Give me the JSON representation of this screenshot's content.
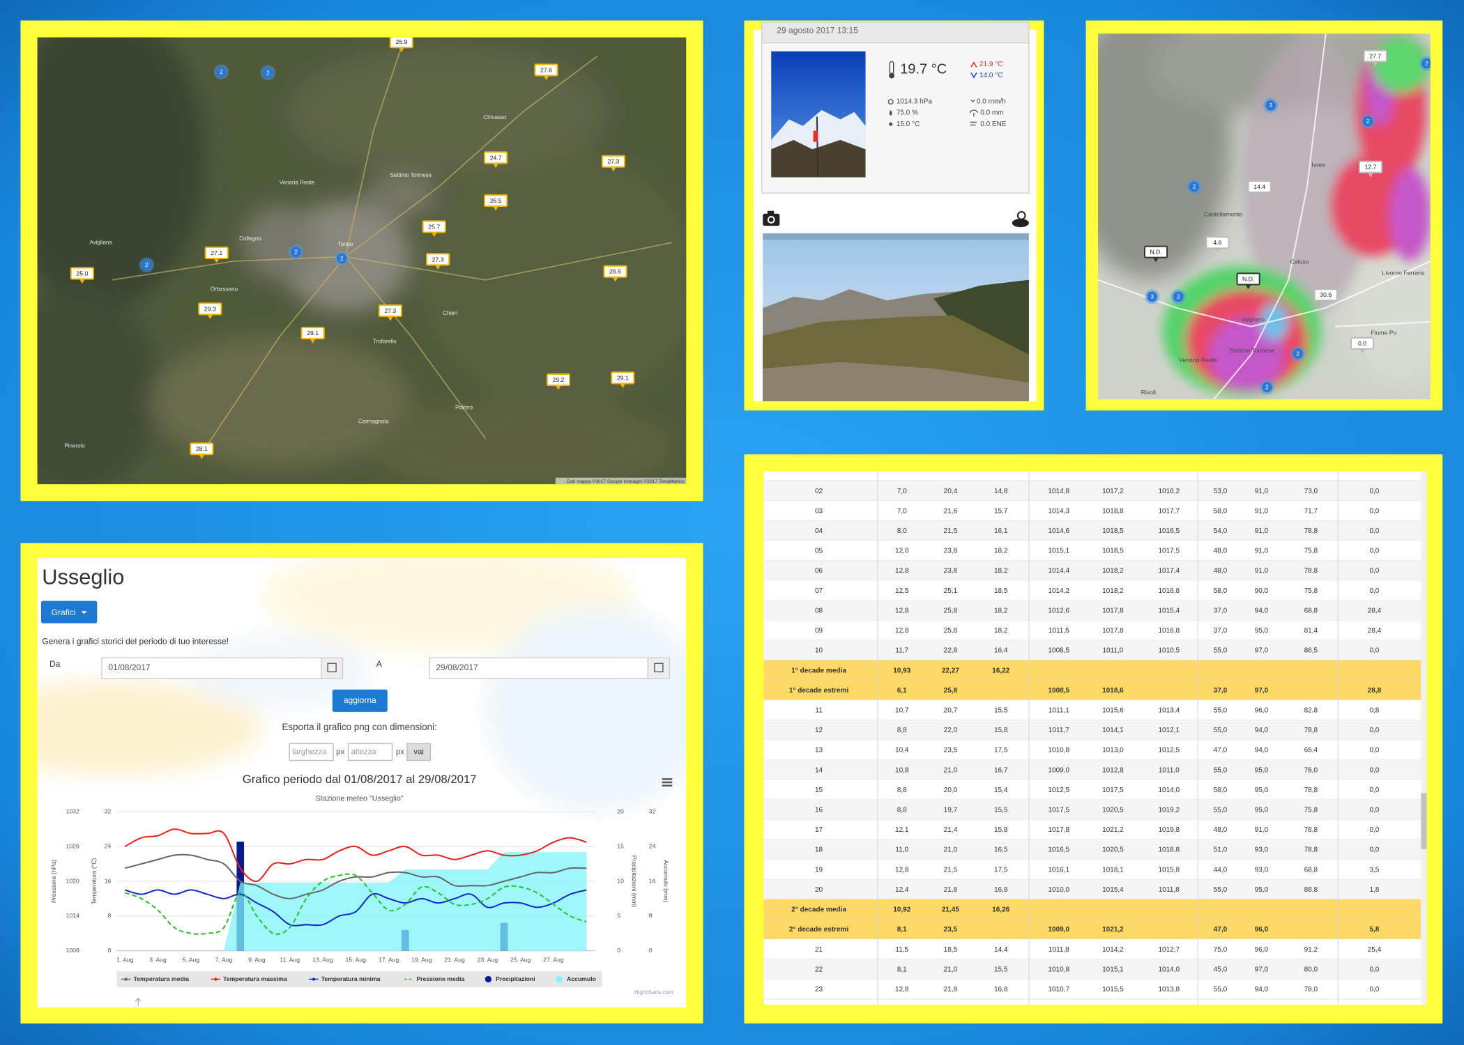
{
  "map": {
    "markers": [
      "26.9",
      "27.6",
      "24.7",
      "27.3",
      "26.5",
      "25.7",
      "27.1",
      "27.3",
      "25.0",
      "26.5",
      "29.3",
      "27.3",
      "29.1",
      "29.2",
      "29.1",
      "28.1"
    ],
    "clusters": [
      "2",
      "2",
      "2",
      "2",
      "2"
    ],
    "places": [
      "Torino",
      "Chivasso",
      "Settimo Torinese",
      "Venaria Reale",
      "Collegno",
      "Orbassano",
      "Carmagnola",
      "Pinerolo",
      "Avigliana",
      "Chieri",
      "Poirino",
      "Trofarello"
    ],
    "attribution": "Dati mappa ©2017 Google Immagini ©2017 TerraMetrics"
  },
  "station": {
    "date": "29 agosto 2017 13:15",
    "temperature": "19.7 °C",
    "max": "21.9 °C",
    "min": "14.0 °C",
    "pressure": "1014.3 hPa",
    "humidity": "75.0 %",
    "dew_point": "15.0 °C",
    "rain_rate": "0.0 mm/h",
    "rain": "0.0 mm",
    "wind": "0.0 ENE"
  },
  "heatmap": {
    "markers": [
      "27.7",
      "12.7",
      "14.4",
      "4.6",
      "N.D.",
      "N.D.",
      "30.6",
      "0.0"
    ],
    "clusters": [
      "3",
      "2",
      "2",
      "3",
      "2",
      "2",
      "2",
      "2"
    ],
    "places": [
      "Ivrea",
      "Castellamonte",
      "Caluso",
      "Volpiano",
      "Settimo Torinese",
      "Venaria Reale",
      "Rivoli",
      "Livorno Ferraris",
      "Fiume Po"
    ]
  },
  "panel": {
    "title": "Usseglio",
    "button": "Grafici",
    "intro": "Genera i grafici storici del periodo di tuo interesse!",
    "from_label": "Da",
    "from": "01/08/2017",
    "to_label": "A",
    "to": "29/08/2017",
    "submit": "aggiorna",
    "export": "Esporta il grafico png con dimensioni:",
    "width_placeholder": "larghezza",
    "height_placeholder": "altezza",
    "unit": "px",
    "go": "vai",
    "credits": "Highcharts.com"
  },
  "chart_data": {
    "type": "line",
    "title": "Grafico periodo dal 01/08/2017 al 29/08/2017",
    "subtitle": "Stazione meteo \"Usseglio\"",
    "categories": [
      "1. Aug",
      null,
      "3. Aug",
      null,
      "5. Aug",
      null,
      "7. Aug",
      null,
      "9. Aug",
      null,
      "11. Aug",
      null,
      "13. Aug",
      null,
      "15. Aug",
      null,
      "17. Aug",
      null,
      "19. Aug",
      null,
      "21. Aug",
      null,
      "23. Aug",
      null,
      "25. Aug",
      null,
      "27. Aug",
      null,
      null
    ],
    "yaxes": [
      {
        "title": "Pressione (hPa)",
        "ylim": [
          1008,
          1032
        ],
        "yticks": [
          1008,
          1014,
          1020,
          1026,
          1032
        ]
      },
      {
        "title": "Temperatura (°C)",
        "ylim": [
          0,
          32
        ],
        "yticks": [
          0,
          8,
          16,
          24,
          32
        ]
      },
      {
        "title": "Precipitazioni (mm)",
        "ylim": [
          0,
          20
        ],
        "yticks": [
          0,
          5,
          10,
          15,
          20
        ]
      },
      {
        "title": "Accumulo (mm)",
        "ylim": [
          0,
          32
        ],
        "yticks": [
          0,
          8,
          16,
          24,
          32
        ]
      }
    ],
    "grid": true,
    "series": [
      {
        "name": "Temperatura media",
        "color": "#666666",
        "axis": 1,
        "values": [
          19,
          20,
          21,
          22,
          22,
          21,
          20,
          16,
          15,
          13,
          12,
          13,
          14,
          16,
          17,
          17,
          18,
          18,
          17,
          17,
          15,
          15,
          15,
          16,
          17,
          18,
          18,
          19,
          19
        ]
      },
      {
        "name": "Temperatura massima",
        "color": "#e8201c",
        "axis": 1,
        "values": [
          24,
          26,
          26.5,
          28,
          27,
          27,
          27,
          19,
          16,
          20,
          20,
          21,
          21,
          23,
          24,
          22,
          23,
          24,
          22,
          22,
          21,
          22,
          23,
          22,
          22,
          23,
          25,
          26,
          25
        ]
      },
      {
        "name": "Temperatura minima",
        "color": "#1428c8",
        "axis": 1,
        "values": [
          14,
          13,
          14,
          13,
          14,
          13,
          12,
          13,
          11,
          9,
          6,
          6,
          6,
          8,
          9,
          13,
          12,
          11,
          12,
          11,
          12,
          13,
          10,
          11,
          11,
          10,
          11,
          13,
          14
        ]
      },
      {
        "name": "Pressione media",
        "color": "#22c322",
        "axis": 0,
        "dash": true,
        "values": [
          1018,
          1017,
          1015,
          1012,
          1011,
          1011,
          1012,
          1018,
          1014,
          1011,
          1012,
          1017,
          1020,
          1021,
          1021,
          1018,
          1015,
          1016,
          1019,
          1018,
          1016,
          1016,
          1017,
          1019,
          1019,
          1018,
          1016,
          1014,
          1013
        ]
      },
      {
        "name": "Precipitazioni",
        "color": "#0a1a8c",
        "axis": 2,
        "type": "column",
        "values": [
          0,
          0,
          0,
          0,
          0,
          0,
          0,
          15.7,
          0,
          0,
          0,
          0,
          0,
          0,
          0,
          0,
          0,
          3,
          0,
          0,
          0,
          0,
          0,
          4,
          0,
          0,
          0,
          0,
          0
        ]
      },
      {
        "name": "Accumulo",
        "color": "#7ff3fa",
        "axis": 3,
        "type": "area",
        "values": [
          0,
          0,
          0,
          0,
          0,
          0,
          0,
          15.7,
          15.7,
          15.7,
          15.7,
          15.7,
          15.7,
          15.7,
          15.7,
          15.7,
          15.7,
          18.7,
          18.7,
          18.7,
          18.7,
          18.7,
          18.7,
          22.7,
          22.7,
          22.7,
          22.7,
          22.7,
          22.7
        ]
      }
    ]
  },
  "table": {
    "rows": [
      [
        "02",
        "7,0",
        "20,4",
        "14,8",
        "1014,8",
        "1017,2",
        "1016,2",
        "53,0",
        "91,0",
        "73,0",
        "0,0"
      ],
      [
        "03",
        "7,0",
        "21,6",
        "15,7",
        "1014,3",
        "1018,8",
        "1017,7",
        "58,0",
        "91,0",
        "71,7",
        "0,0"
      ],
      [
        "04",
        "8,0",
        "21,5",
        "16,1",
        "1014,6",
        "1018,5",
        "1016,5",
        "54,0",
        "91,0",
        "78,8",
        "0,0"
      ],
      [
        "05",
        "12,0",
        "23,8",
        "18,2",
        "1015,1",
        "1018,5",
        "1017,5",
        "48,0",
        "91,0",
        "75,8",
        "0,0"
      ],
      [
        "06",
        "12,8",
        "23,8",
        "18,2",
        "1014,4",
        "1018,2",
        "1017,4",
        "48,0",
        "91,0",
        "78,8",
        "0,0"
      ],
      [
        "07",
        "12,5",
        "25,1",
        "18,5",
        "1014,2",
        "1018,2",
        "1016,8",
        "58,0",
        "90,0",
        "75,8",
        "0,0"
      ],
      [
        "08",
        "12,8",
        "25,8",
        "18,2",
        "1012,6",
        "1017,8",
        "1015,4",
        "37,0",
        "94,0",
        "68,8",
        "28,4"
      ],
      [
        "09",
        "12,8",
        "25,8",
        "18,2",
        "1011,5",
        "1017,8",
        "1016,8",
        "37,0",
        "95,0",
        "81,4",
        "28,4"
      ],
      [
        "10",
        "11,7",
        "22,8",
        "16,4",
        "1008,5",
        "1011,0",
        "1010,5",
        "55,0",
        "97,0",
        "86,5",
        "0,0"
      ],
      [
        "1° decade media",
        "10,93",
        "22,27",
        "16,22",
        null,
        null,
        null,
        null,
        null,
        null,
        null
      ],
      [
        "1° decade estremi",
        "6,1",
        "25,8",
        null,
        "1008,5",
        "1018,6",
        null,
        "37,0",
        "97,0",
        null,
        "28,8"
      ],
      [
        "11",
        "10,7",
        "20,7",
        "15,5",
        "1011,1",
        "1015,6",
        "1013,4",
        "55,0",
        "96,0",
        "82,8",
        "0,8"
      ],
      [
        "12",
        "8,8",
        "22,0",
        "15,8",
        "1011,7",
        "1014,1",
        "1012,1",
        "55,0",
        "94,0",
        "78,8",
        "0,0"
      ],
      [
        "13",
        "10,4",
        "23,5",
        "17,5",
        "1010,8",
        "1013,0",
        "1012,5",
        "47,0",
        "94,0",
        "65,4",
        "0,0"
      ],
      [
        "14",
        "10,8",
        "21,0",
        "16,7",
        "1009,0",
        "1012,8",
        "1011,0",
        "55,0",
        "95,0",
        "76,0",
        "0,0"
      ],
      [
        "15",
        "8,8",
        "20,0",
        "15,4",
        "1012,5",
        "1017,5",
        "1014,0",
        "58,0",
        "95,0",
        "78,8",
        "0,0"
      ],
      [
        "16",
        "8,8",
        "19,7",
        "15,5",
        "1017,5",
        "1020,5",
        "1019,2",
        "55,0",
        "95,0",
        "75,8",
        "0,0"
      ],
      [
        "17",
        "12,1",
        "21,4",
        "15,8",
        "1017,8",
        "1021,2",
        "1019,8",
        "48,0",
        "91,0",
        "78,8",
        "0,0"
      ],
      [
        "18",
        "11,0",
        "21,0",
        "16,5",
        "1016,5",
        "1020,5",
        "1018,8",
        "51,0",
        "93,0",
        "78,8",
        "0,0"
      ],
      [
        "19",
        "12,8",
        "21,5",
        "17,5",
        "1016,1",
        "1018,1",
        "1015,8",
        "44,0",
        "93,0",
        "68,8",
        "3,5"
      ],
      [
        "20",
        "12,4",
        "21,8",
        "16,8",
        "1010,0",
        "1015,4",
        "1011,8",
        "55,0",
        "95,0",
        "88,8",
        "1,8"
      ],
      [
        "2° decade media",
        "10,92",
        "21,45",
        "16,26",
        null,
        null,
        null,
        null,
        null,
        null,
        null
      ],
      [
        "2° decade estremi",
        "8,1",
        "23,5",
        null,
        "1009,0",
        "1021,2",
        null,
        "47,0",
        "96,0",
        null,
        "5,8"
      ],
      [
        "21",
        "11,5",
        "18,5",
        "14,4",
        "1011,8",
        "1014,2",
        "1012,7",
        "75,0",
        "96,0",
        "91,2",
        "25,4"
      ],
      [
        "22",
        "8,1",
        "21,0",
        "15,5",
        "1010,8",
        "1015,1",
        "1014,0",
        "45,0",
        "97,0",
        "80,0",
        "0,0"
      ],
      [
        "23",
        "12,8",
        "21,8",
        "16,8",
        "1010,7",
        "1015,5",
        "1013,8",
        "55,0",
        "94,0",
        "78,0",
        "0,0"
      ]
    ]
  }
}
